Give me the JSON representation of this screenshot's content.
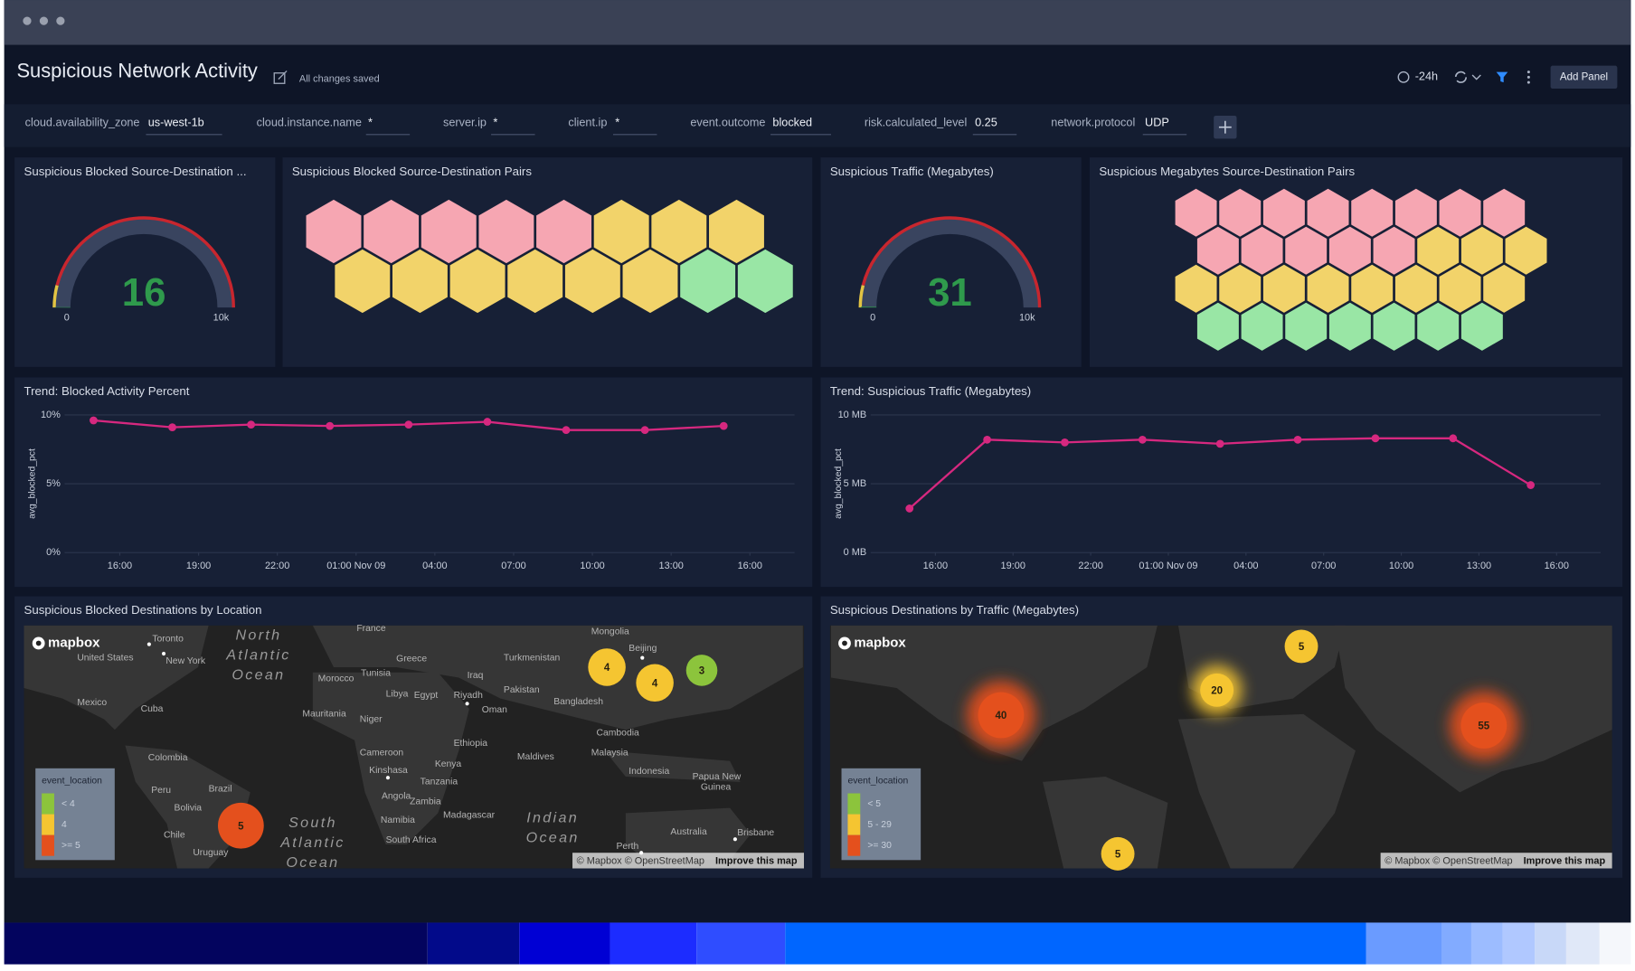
{
  "header": {
    "title": "Suspicious Network Activity",
    "status": "All changes saved",
    "time_range": "-24h",
    "add_panel": "Add Panel"
  },
  "filters": [
    {
      "label": "cloud.availability_zone",
      "value": "us-west-1b"
    },
    {
      "label": "cloud.instance.name",
      "value": "*"
    },
    {
      "label": "server.ip",
      "value": "*"
    },
    {
      "label": "client.ip",
      "value": "*"
    },
    {
      "label": "event.outcome",
      "value": "blocked"
    },
    {
      "label": "risk.calculated_level",
      "value": "0.25"
    },
    {
      "label": "network.protocol",
      "value": "UDP"
    }
  ],
  "panels": [
    {
      "type": "gauge",
      "title": "Suspicious Blocked Source-Destination ...",
      "value": 16,
      "range": [
        0,
        {
          "value": 10000,
          "label": "10k"
        }
      ],
      "value_color": "#2f9a4c",
      "band_color": "#39445f",
      "threshold_colors": [
        "#e3c443",
        "#c8262e"
      ]
    },
    {
      "type": "honeycomb",
      "title": "Suspicious Blocked Source-Destination Pairs",
      "cells": [
        "#f6a6b2",
        "#f6a6b2",
        "#f6a6b2",
        "#f6a6b2",
        "#f6a6b2",
        "#f2d36a",
        "#f2d36a",
        "#f2d36a",
        "#f2d36a",
        "#f2d36a",
        "#f2d36a",
        "#f2d36a",
        "#f2d36a",
        "#f2d36a",
        "#99e6a5",
        "#99e6a5"
      ]
    },
    {
      "type": "gauge",
      "title": "Suspicious Traffic (Megabytes)",
      "value": 31,
      "range": [
        0,
        {
          "value": 10000,
          "label": "10k"
        }
      ],
      "value_color": "#2f9a4c",
      "band_color": "#39445f",
      "threshold_colors": [
        "#e3c443",
        "#c8262e"
      ]
    },
    {
      "type": "honeycomb",
      "title": "Suspicious Megabytes Source-Destination Pairs",
      "cells": [
        "#f6a6b2",
        "#f6a6b2",
        "#f6a6b2",
        "#f6a6b2",
        "#f6a6b2",
        "#f6a6b2",
        "#f6a6b2",
        "#f6a6b2",
        "#f6a6b2",
        "#f6a6b2",
        "#f6a6b2",
        "#f6a6b2",
        "#f6a6b2",
        "#f2d36a",
        "#f2d36a",
        "#f2d36a",
        "#f2d36a",
        "#f2d36a",
        "#f2d36a",
        "#f2d36a",
        "#f2d36a",
        "#f2d36a",
        "#f2d36a",
        "#f2d36a",
        "#99e6a5",
        "#99e6a5",
        "#99e6a5",
        "#99e6a5",
        "#99e6a5",
        "#99e6a5",
        "#99e6a5"
      ]
    },
    {
      "type": "line",
      "title": "Trend: Blocked Activity Percent",
      "y_label": "avg_blocked_pct",
      "color": "#d6287f",
      "grid": true,
      "x": [
        0,
        3,
        6,
        9,
        12,
        15,
        18,
        21,
        24
      ],
      "values": [
        9.6,
        9.1,
        9.3,
        9.2,
        9.3,
        9.5,
        8.9,
        8.9,
        9.2
      ],
      "xlim": [
        -1.1,
        26.7
      ],
      "xticks": [
        {
          "value": 1,
          "label": "16:00"
        },
        {
          "value": 4,
          "label": "19:00"
        },
        {
          "value": 7,
          "label": "22:00"
        },
        {
          "value": 10,
          "label": "01:00 Nov 09"
        },
        {
          "value": 13,
          "label": "04:00"
        },
        {
          "value": 16,
          "label": "07:00"
        },
        {
          "value": 19,
          "label": "10:00"
        },
        {
          "value": 22,
          "label": "13:00"
        },
        {
          "value": 25,
          "label": "16:00"
        }
      ],
      "ylim": [
        0,
        10
      ],
      "yticks": [
        {
          "value": 0,
          "label": "0%"
        },
        {
          "value": 5,
          "label": "5%"
        },
        {
          "value": 10,
          "label": "10%"
        }
      ]
    },
    {
      "type": "line",
      "title": "Trend: Suspicious Traffic (Megabytes)",
      "y_label": "avg_blocked_pct",
      "color": "#d6287f",
      "grid": true,
      "x": [
        0,
        3,
        6,
        9,
        12,
        15,
        18,
        21,
        24
      ],
      "values": [
        3.2,
        8.2,
        8.0,
        8.2,
        7.9,
        8.2,
        8.3,
        8.3,
        4.9
      ],
      "xlim": [
        -1.5,
        26.7
      ],
      "xticks": [
        {
          "value": 1,
          "label": "16:00"
        },
        {
          "value": 4,
          "label": "19:00"
        },
        {
          "value": 7,
          "label": "22:00"
        },
        {
          "value": 10,
          "label": "01:00 Nov 09"
        },
        {
          "value": 13,
          "label": "04:00"
        },
        {
          "value": 16,
          "label": "07:00"
        },
        {
          "value": 19,
          "label": "10:00"
        },
        {
          "value": 22,
          "label": "13:00"
        },
        {
          "value": 25,
          "label": "16:00"
        }
      ],
      "ylim": [
        0,
        10
      ],
      "yticks": [
        {
          "value": 0,
          "label": "0 MB"
        },
        {
          "value": 5,
          "label": "5 MB"
        },
        {
          "value": 10,
          "label": "10 MB"
        }
      ]
    },
    {
      "type": "map",
      "title": "Suspicious Blocked Destinations by Location",
      "logo": "mapbox",
      "attribution": "© Mapbox © OpenStreetMap",
      "improve": "Improve this map",
      "places": [
        "Toronto",
        "United States",
        "New York",
        "Mexico",
        "Cuba",
        "Colombia",
        "Peru",
        "Brazil",
        "Bolivia",
        "Chile",
        "Uruguay",
        "France",
        "Greece",
        "Turkmenistan",
        "Mongolia",
        "Beijing",
        "Morocco",
        "Tunisia",
        "Libya",
        "Egypt",
        "Iraq",
        "Riyadh",
        "Pakistan",
        "Oman",
        "Bangladesh",
        "Mauritania",
        "Niger",
        "Ethiopia",
        "Cameroon",
        "Kenya",
        "Kinshasa",
        "Tanzania",
        "Angola",
        "Zambia",
        "Madagascar",
        "Namibia",
        "South Africa",
        "Maldives",
        "Malaysia",
        "Cambodia",
        "Indonesia",
        "Papua New",
        "Guinea",
        "Australia",
        "Brisbane",
        "Perth"
      ],
      "oceans": [
        [
          "North",
          "Atlantic",
          "Ocean"
        ],
        [
          "South",
          "Atlantic",
          "Ocean"
        ],
        [
          "Indian",
          "Ocean"
        ]
      ],
      "clusters": [
        {
          "value": 4,
          "color": "#f5c531"
        },
        {
          "value": 4,
          "color": "#f5c531"
        },
        {
          "value": 3,
          "color": "#8cc43c"
        },
        {
          "value": 5,
          "color": "#e4501d"
        }
      ],
      "legend": {
        "title": "event_location",
        "items": [
          {
            "label": "< 4",
            "color": "#8cc43c"
          },
          {
            "label": "4",
            "color": "#f5c531"
          },
          {
            "label": ">= 5",
            "color": "#e4501d"
          }
        ]
      }
    },
    {
      "type": "map",
      "title": "Suspicious Destinations by Traffic (Megabytes)",
      "logo": "mapbox",
      "attribution": "© Mapbox © OpenStreetMap",
      "improve": "Improve this map",
      "places": [],
      "oceans": [],
      "clusters": [
        {
          "value": 5,
          "color": "#f5c531"
        },
        {
          "value": 20,
          "color": "#f5c531"
        },
        {
          "value": 40,
          "color": "#e4501d"
        },
        {
          "value": 55,
          "color": "#e4501d"
        },
        {
          "value": 5,
          "color": "#f5c531"
        }
      ],
      "legend": {
        "title": "event_location",
        "items": [
          {
            "label": "< 5",
            "color": "#8cc43c"
          },
          {
            "label": "5 - 29",
            "color": "#f5c531"
          },
          {
            "label": ">= 30",
            "color": "#e4501d"
          }
        ]
      }
    }
  ]
}
